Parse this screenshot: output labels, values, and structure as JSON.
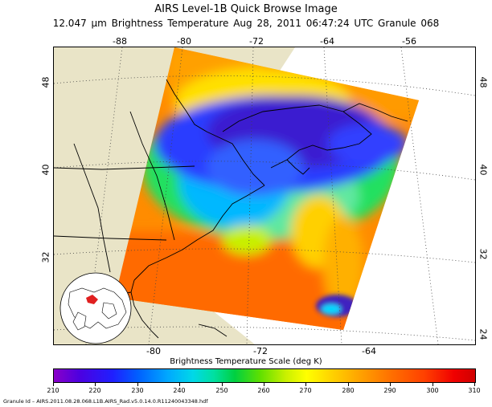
{
  "header": {
    "title": "AIRS Level-1B Quick Browse Image",
    "subtitle": "12.047 μm Brightness Temperature   Aug 28, 2011 06:47:24 UTC   Granule 068"
  },
  "map": {
    "top_longitude_labels": [
      "-88",
      "-80",
      "-72",
      "-64",
      "-56"
    ],
    "bottom_longitude_labels": [
      "-80",
      "-72",
      "-64"
    ],
    "left_latitude_labels": [
      "48",
      "40",
      "32"
    ],
    "right_latitude_labels": [
      "48",
      "40",
      "32",
      "24"
    ],
    "colors": {
      "land": "#e9e4c7",
      "coast": "#000000",
      "grid": "#555555"
    }
  },
  "colorbar": {
    "title": "Brightness Temperature Scale (deg K)",
    "tick_labels": [
      "210",
      "220",
      "230",
      "240",
      "250",
      "260",
      "270",
      "280",
      "290",
      "300",
      "310"
    ],
    "min": 210,
    "max": 310
  },
  "footer": {
    "granule_id": "Granule Id – AIRS.2011.08.28.068.L1B.AIRS_Rad.v5.0.14.0.R11240043348.hdf"
  }
}
